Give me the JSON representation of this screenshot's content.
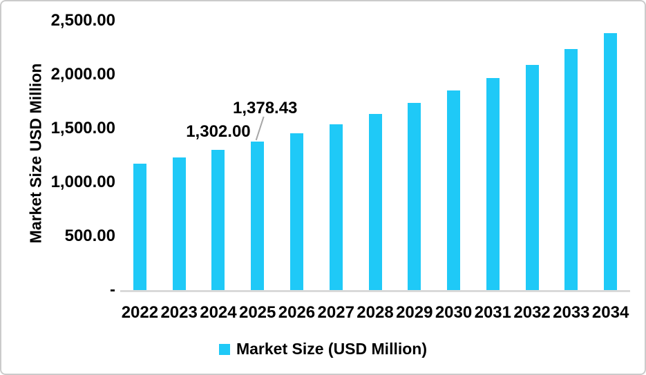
{
  "chart_data": {
    "type": "bar",
    "title": "",
    "xlabel": "",
    "ylabel": "Market Size USD Million",
    "categories": [
      "2022",
      "2023",
      "2024",
      "2025",
      "2026",
      "2027",
      "2028",
      "2029",
      "2030",
      "2031",
      "2032",
      "2033",
      "2034"
    ],
    "values": [
      1170,
      1230,
      1302.0,
      1378.43,
      1455,
      1540,
      1635,
      1740,
      1850,
      1965,
      2090,
      2240,
      2385
    ],
    "ylim": [
      0,
      2500
    ],
    "grid": false,
    "yticks": [
      {
        "value": 2500,
        "label": "2,500.00"
      },
      {
        "value": 2000,
        "label": "2,000.00"
      },
      {
        "value": 1500,
        "label": "1,500.00"
      },
      {
        "value": 1000,
        "label": "1,000.00"
      },
      {
        "value": 500,
        "label": "500.00"
      },
      {
        "value": 0,
        "label": "-"
      }
    ],
    "data_labels": [
      {
        "category": "2024",
        "text": "1,302.00",
        "leader": false
      },
      {
        "category": "2025",
        "text": "1,378.43",
        "leader": true
      }
    ],
    "legend": [
      "Market Size (USD Million)"
    ],
    "legend_position": "bottom",
    "colors": {
      "bar": "#1fc9f7",
      "axis_line": "#d9d9d9",
      "leader_line": "#a6a6a6",
      "text": "#000000",
      "border": "#cbcbcb"
    }
  }
}
